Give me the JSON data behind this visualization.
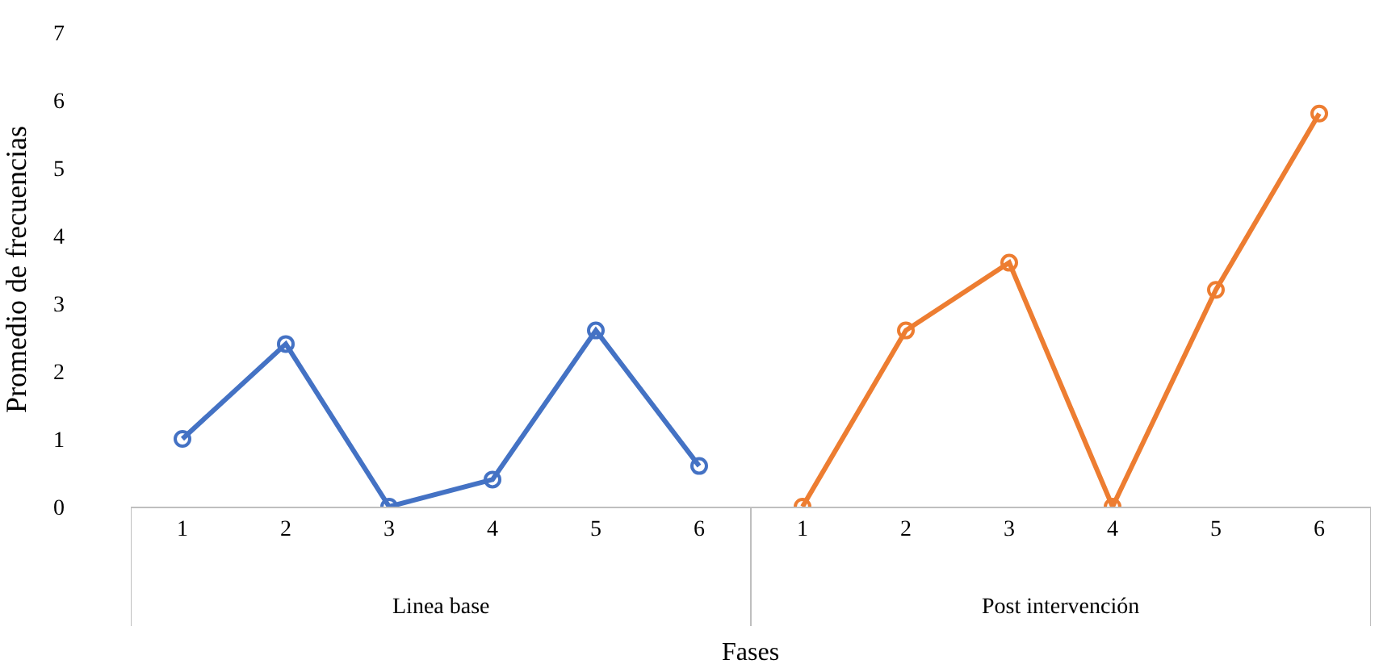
{
  "chart_data": {
    "type": "line",
    "xlabel": "Fases",
    "ylabel": "Promedio de frecuencias",
    "categories": [
      "1",
      "2",
      "3",
      "4",
      "5",
      "6",
      "1",
      "2",
      "3",
      "4",
      "5",
      "6"
    ],
    "series": [
      {
        "color": "#4472c4",
        "values": [
          1,
          2.4,
          0,
          0.4,
          2.6,
          0.6,
          null,
          null,
          null,
          null,
          null,
          null
        ]
      },
      {
        "color": "#ed7d31",
        "values": [
          null,
          null,
          null,
          null,
          null,
          null,
          0,
          2.6,
          3.6,
          0,
          3.2,
          5.8
        ]
      }
    ],
    "annotations": [
      "Linea base",
      "Post intervención"
    ],
    "ylim": [
      0,
      7
    ],
    "yticks": [
      0,
      1,
      2,
      3,
      4,
      5,
      6,
      7
    ],
    "marker": "circle",
    "line_style": "solid"
  }
}
